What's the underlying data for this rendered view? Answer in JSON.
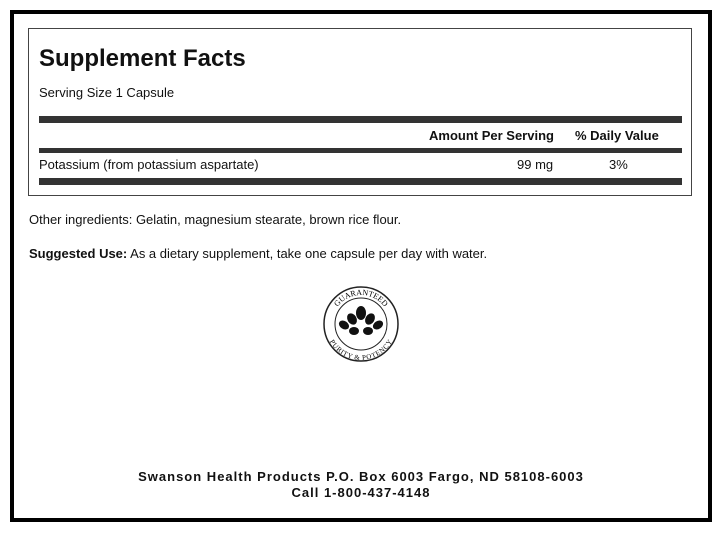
{
  "title": "Supplement Facts",
  "serving_size": "Serving Size 1 Capsule",
  "table": {
    "headers": [
      "Amount Per Serving",
      "% Daily Value"
    ],
    "rows": [
      {
        "name": "Potassium (from potassium aspartate)",
        "amount": "99 mg",
        "dv": "3%"
      }
    ]
  },
  "other_ingredients": "Other ingredients: Gelatin, magnesium stearate, brown rice flour.",
  "suggested_use": {
    "label": "Suggested Use:",
    "text": " As a dietary supplement, take one capsule per day with water."
  },
  "seal": {
    "top": "GUARANTEED",
    "bottom": "PURITY & POTENCY"
  },
  "footer": {
    "address": "Swanson Health Products P.O. Box 6003 Fargo, ND 58108-6003",
    "phone": "Call 1-800-437-4148"
  }
}
